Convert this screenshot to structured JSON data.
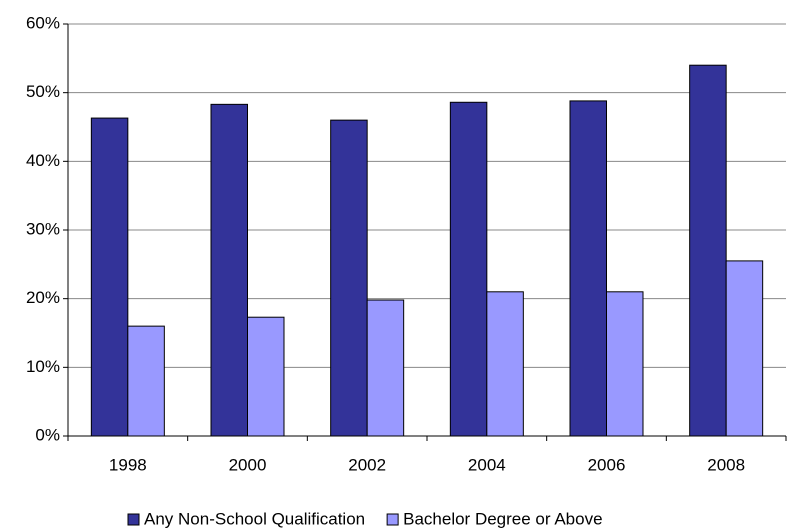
{
  "chart_data": {
    "type": "bar",
    "categories": [
      "1998",
      "2000",
      "2002",
      "2004",
      "2006",
      "2008"
    ],
    "series": [
      {
        "name": "Any Non-School Qualification",
        "color": "#333399",
        "values": [
          46.3,
          48.3,
          46.0,
          48.6,
          48.8,
          54.0
        ]
      },
      {
        "name": "Bachelor Degree or Above",
        "color": "#9999ff",
        "values": [
          16.0,
          17.3,
          19.8,
          21.0,
          21.0,
          25.5
        ]
      }
    ],
    "ylim": [
      0,
      60
    ],
    "yticks": [
      {
        "value": 0,
        "label": "0%"
      },
      {
        "value": 10,
        "label": "10%"
      },
      {
        "value": 20,
        "label": "20%"
      },
      {
        "value": 30,
        "label": "30%"
      },
      {
        "value": 40,
        "label": "40%"
      },
      {
        "value": 50,
        "label": "50%"
      },
      {
        "value": 60,
        "label": "60%"
      }
    ],
    "grid": true,
    "legend": "bottom"
  }
}
